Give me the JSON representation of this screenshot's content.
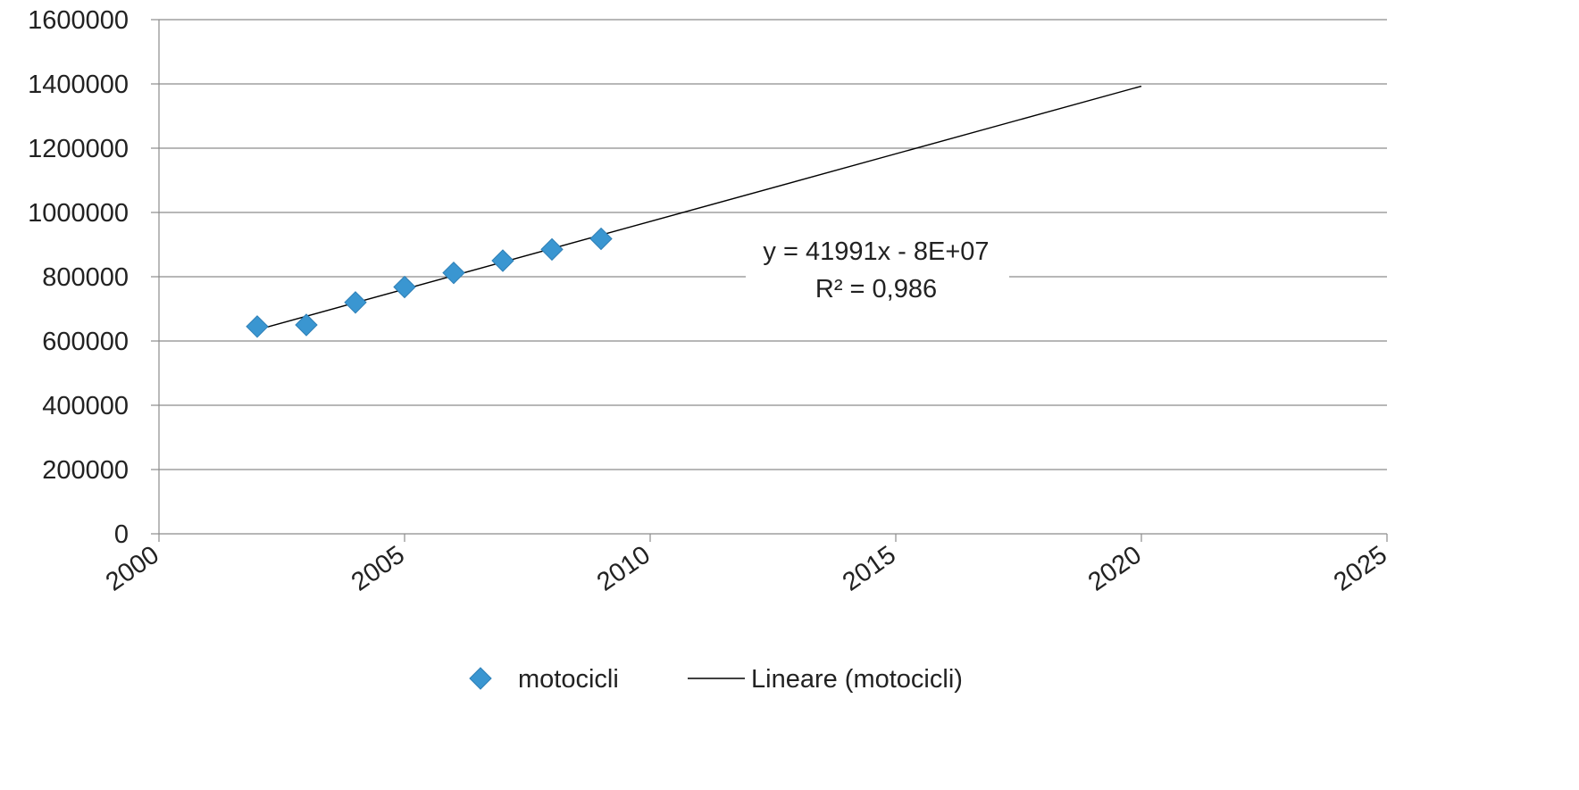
{
  "chart_data": {
    "type": "scatter",
    "x_ticks": [
      "2000",
      "2005",
      "2010",
      "2015",
      "2020",
      "2025"
    ],
    "y_ticks": [
      "0",
      "200000",
      "400000",
      "600000",
      "800000",
      "1000000",
      "1200000",
      "1400000",
      "1600000"
    ],
    "xlim": [
      2000,
      2025
    ],
    "ylim": [
      0,
      1600000
    ],
    "grid": true,
    "legend_position": "bottom",
    "series": [
      {
        "name": "motocicli",
        "marker": "diamond",
        "color": "#3A96D1",
        "x": [
          2002,
          2003,
          2004,
          2005,
          2006,
          2007,
          2008,
          2009
        ],
        "y": [
          645000,
          650000,
          720000,
          768000,
          812000,
          850000,
          885000,
          918000
        ]
      }
    ],
    "trendline": {
      "name": "Lineare (motocicli)",
      "color": "#000000",
      "x": [
        2002,
        2020
      ],
      "y": [
        635000,
        1393000
      ]
    },
    "annotation": {
      "equation": "y = 41991x - 8E+07",
      "r_squared": "R² = 0,986"
    },
    "legend": {
      "series_label": "motocicli",
      "trend_label": "Lineare (motocicli)"
    }
  }
}
